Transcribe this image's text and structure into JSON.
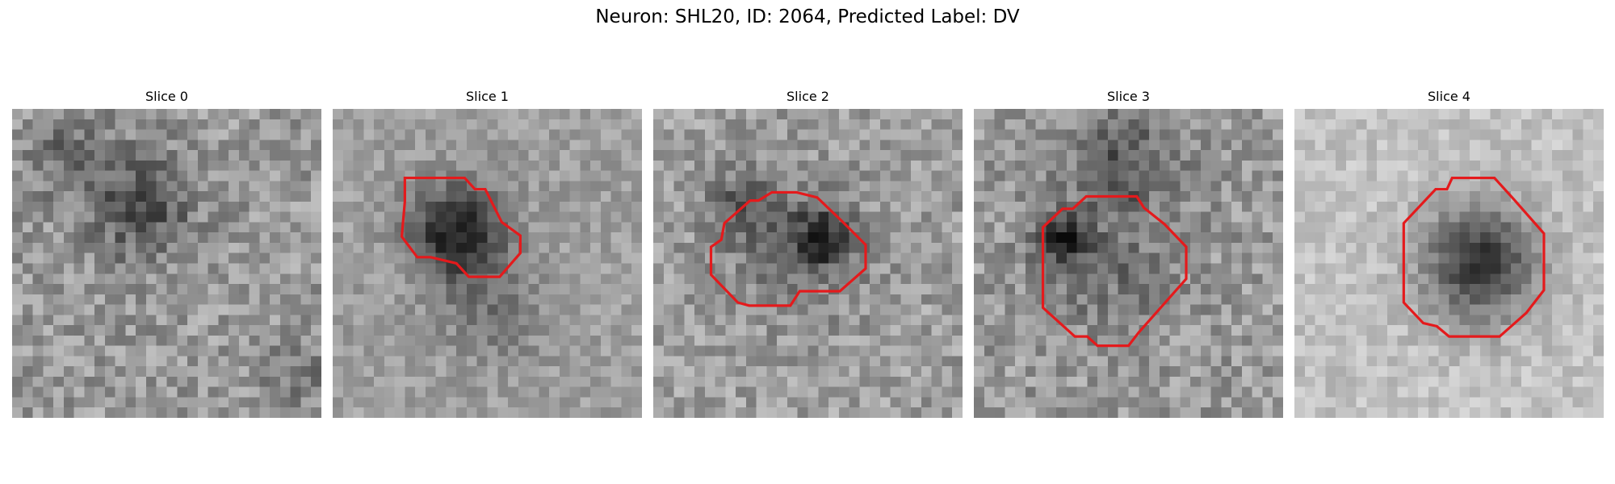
{
  "figure": {
    "suptitle": "Neuron: SHL20, ID: 2064, Predicted Label: DV"
  },
  "colors": {
    "outline": "#e41a1c",
    "background": "#ffffff"
  },
  "panels": [
    {
      "title": "Slice 0",
      "has_outline": false,
      "darkness": []
    },
    {
      "title": "Slice 1",
      "has_outline": true,
      "darkness": []
    },
    {
      "title": "Slice 2",
      "has_outline": true,
      "darkness": []
    },
    {
      "title": "Slice 3",
      "has_outline": true,
      "darkness": []
    },
    {
      "title": "Slice 4",
      "has_outline": true,
      "darkness": []
    }
  ]
}
